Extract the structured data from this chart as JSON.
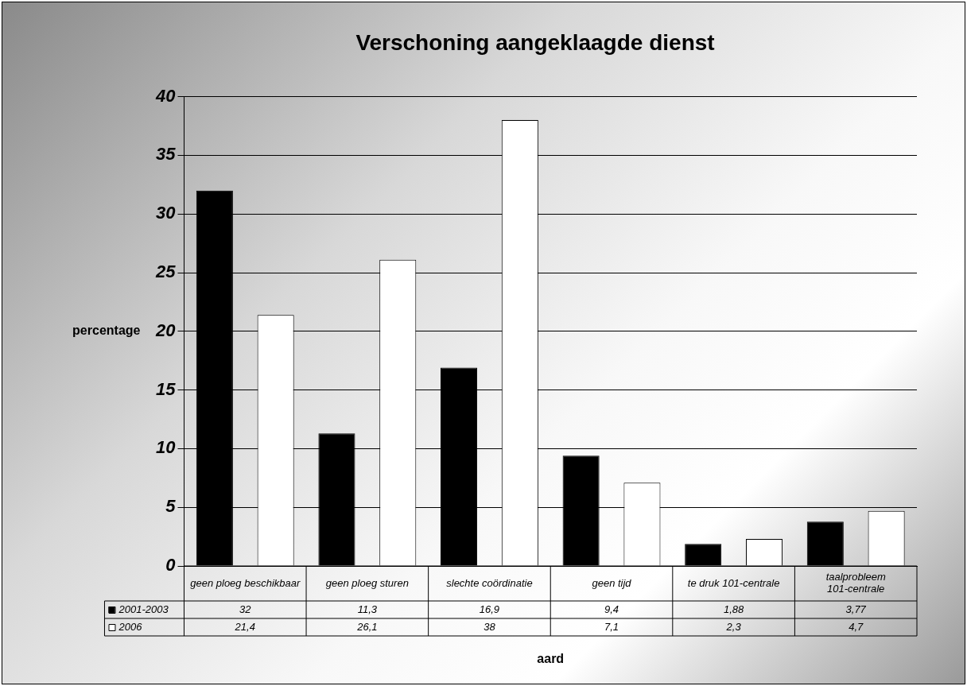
{
  "chart_data": {
    "type": "bar",
    "title": "Verschoning aangeklaagde dienst",
    "xlabel": "aard",
    "ylabel": "percentage",
    "categories": [
      "geen ploeg beschikbaar",
      "geen ploeg sturen",
      "slechte coördinatie",
      "geen tijd",
      "te druk 101-centrale",
      "taalprobleem 101-centrale"
    ],
    "series": [
      {
        "name": "2001-2003",
        "color": "#000000",
        "values": [
          32,
          11.3,
          16.9,
          9.4,
          1.88,
          3.77
        ],
        "value_labels": [
          "32",
          "11,3",
          "16,9",
          "9,4",
          "1,88",
          "3,77"
        ]
      },
      {
        "name": "2006",
        "color": "#ffffff",
        "values": [
          21.4,
          26.1,
          38,
          7.1,
          2.3,
          4.7
        ],
        "value_labels": [
          "21,4",
          "26,1",
          "38",
          "7,1",
          "2,3",
          "4,7"
        ]
      }
    ],
    "ylim": [
      0,
      40
    ],
    "yticks": [
      0,
      5,
      10,
      15,
      20,
      25,
      30,
      35,
      40
    ],
    "grid": "y",
    "legend": "bottom"
  }
}
